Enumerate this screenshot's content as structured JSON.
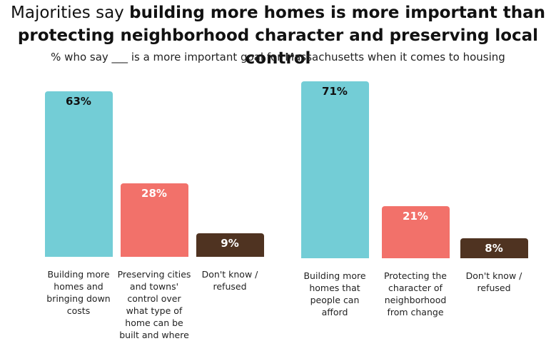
{
  "title": [
    "Majorities say",
    "building more homes is more important than protecting neighborhood character and preserving local control"
  ],
  "subtitle": "% who say ___ is a more important goal for Massachusetts when it comes to housing",
  "chart_data": [
    {
      "type": "bar",
      "categories": [
        "Building more homes and bringing down costs",
        "Preserving cities and towns' control over what type of home can be built and where",
        "Don't know / refused"
      ],
      "values": [
        63,
        28,
        9
      ],
      "value_labels": [
        "63%",
        "28%",
        "9%"
      ],
      "colors": [
        "#73cdd6",
        "#f2716a",
        "#4f3321"
      ]
    },
    {
      "type": "bar",
      "categories": [
        "Building more homes that people can afford",
        "Protecting the character of neighborhood from change",
        "Don't know / refused"
      ],
      "values": [
        71,
        21,
        8
      ],
      "value_labels": [
        "71%",
        "21%",
        "8%"
      ],
      "colors": [
        "#73cdd6",
        "#f2716a",
        "#4f3321"
      ]
    }
  ]
}
